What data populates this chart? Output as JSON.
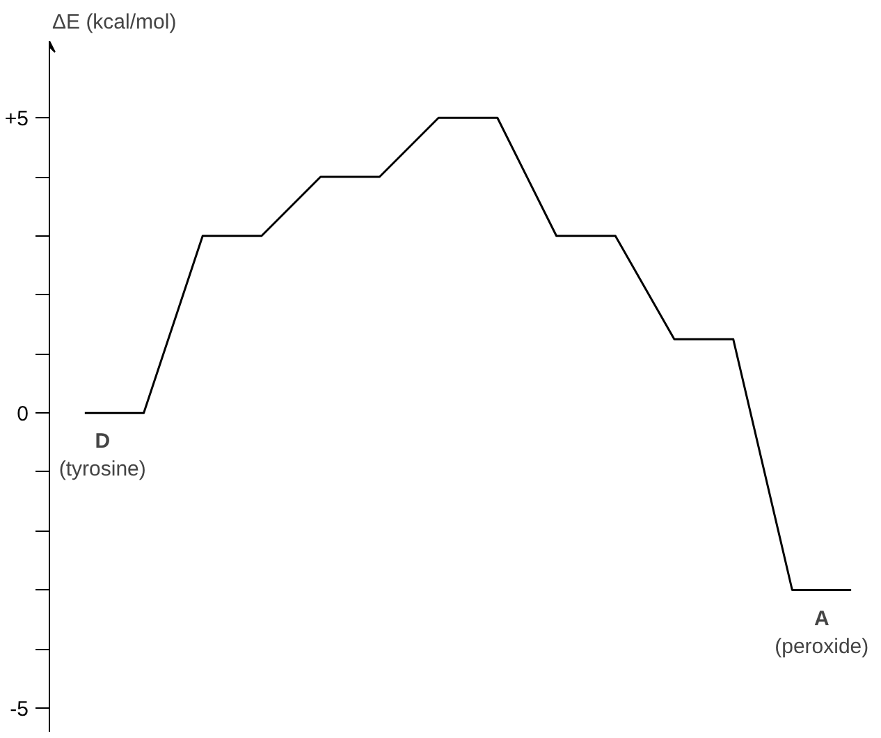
{
  "chart_data": {
    "type": "line",
    "ylabel": "ΔE (kcal/mol)",
    "categories": [
      null,
      null,
      null,
      null,
      null,
      null,
      null,
      null,
      null,
      null,
      null,
      null,
      null,
      null
    ],
    "series": [
      {
        "color": "#000000",
        "values": [
          0,
          0,
          3,
          3,
          4,
          4,
          5,
          5,
          3,
          3,
          1.25,
          1.25,
          -3,
          -3
        ]
      }
    ],
    "ylim": [
      -5.4,
      6.3
    ],
    "yticks": [
      {
        "value": 5,
        "label": "+5"
      },
      {
        "value": 4,
        "label": null
      },
      {
        "value": 3,
        "label": null
      },
      {
        "value": 2,
        "label": null
      },
      {
        "value": 1,
        "label": null
      },
      0,
      {
        "value": -1,
        "label": null
      },
      {
        "value": -2,
        "label": null
      },
      {
        "value": -3,
        "label": null
      },
      {
        "value": -4,
        "label": null
      },
      {
        "value": -5,
        "label": "-5"
      }
    ],
    "tick_labels": "y",
    "grid": false,
    "marker": "none",
    "line_style": "solid",
    "annotations": [
      {
        "text": "D",
        "y": 0
      },
      {
        "text": "(tyrosine)",
        "y": 0
      },
      {
        "text": "A",
        "y": -3
      },
      {
        "text": "(peroxide)",
        "y": -3
      }
    ]
  }
}
